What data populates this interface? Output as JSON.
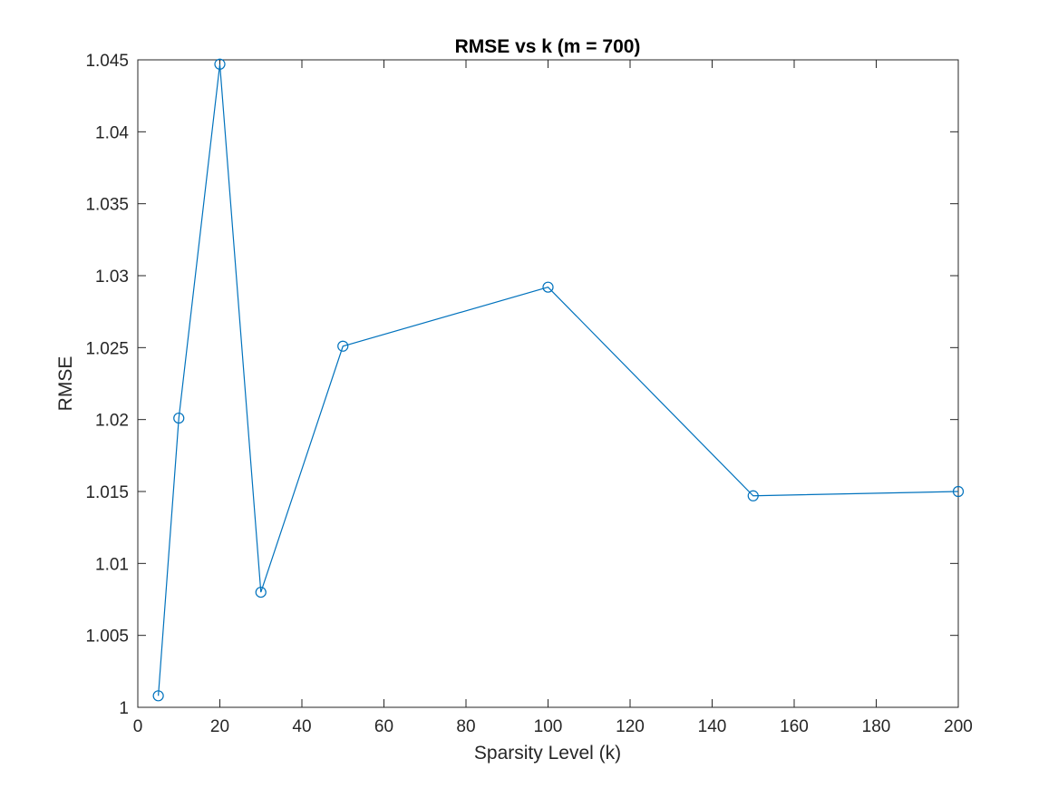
{
  "chart_data": {
    "type": "line",
    "title": "RMSE vs k (m = 700)",
    "xlabel": "Sparsity Level (k)",
    "ylabel": "RMSE",
    "xlim": [
      0,
      200
    ],
    "ylim": [
      1,
      1.045
    ],
    "xticks": [
      0,
      20,
      40,
      60,
      80,
      100,
      120,
      140,
      160,
      180,
      200
    ],
    "xtick_labels": [
      "0",
      "20",
      "40",
      "60",
      "80",
      "100",
      "120",
      "140",
      "160",
      "180",
      "200"
    ],
    "yticks": [
      1,
      1.005,
      1.01,
      1.015,
      1.02,
      1.025,
      1.03,
      1.035,
      1.04,
      1.045
    ],
    "ytick_labels": [
      "1",
      "1.005",
      "1.01",
      "1.015",
      "1.02",
      "1.025",
      "1.03",
      "1.035",
      "1.04",
      "1.045"
    ],
    "grid": false,
    "marker": "circle",
    "series": [
      {
        "color": "#0072BD",
        "x": [
          5,
          10,
          20,
          30,
          50,
          100,
          150,
          200
        ],
        "y": [
          1.0008,
          1.0201,
          1.0447,
          1.008,
          1.0251,
          1.0292,
          1.0147,
          1.015
        ]
      }
    ]
  }
}
